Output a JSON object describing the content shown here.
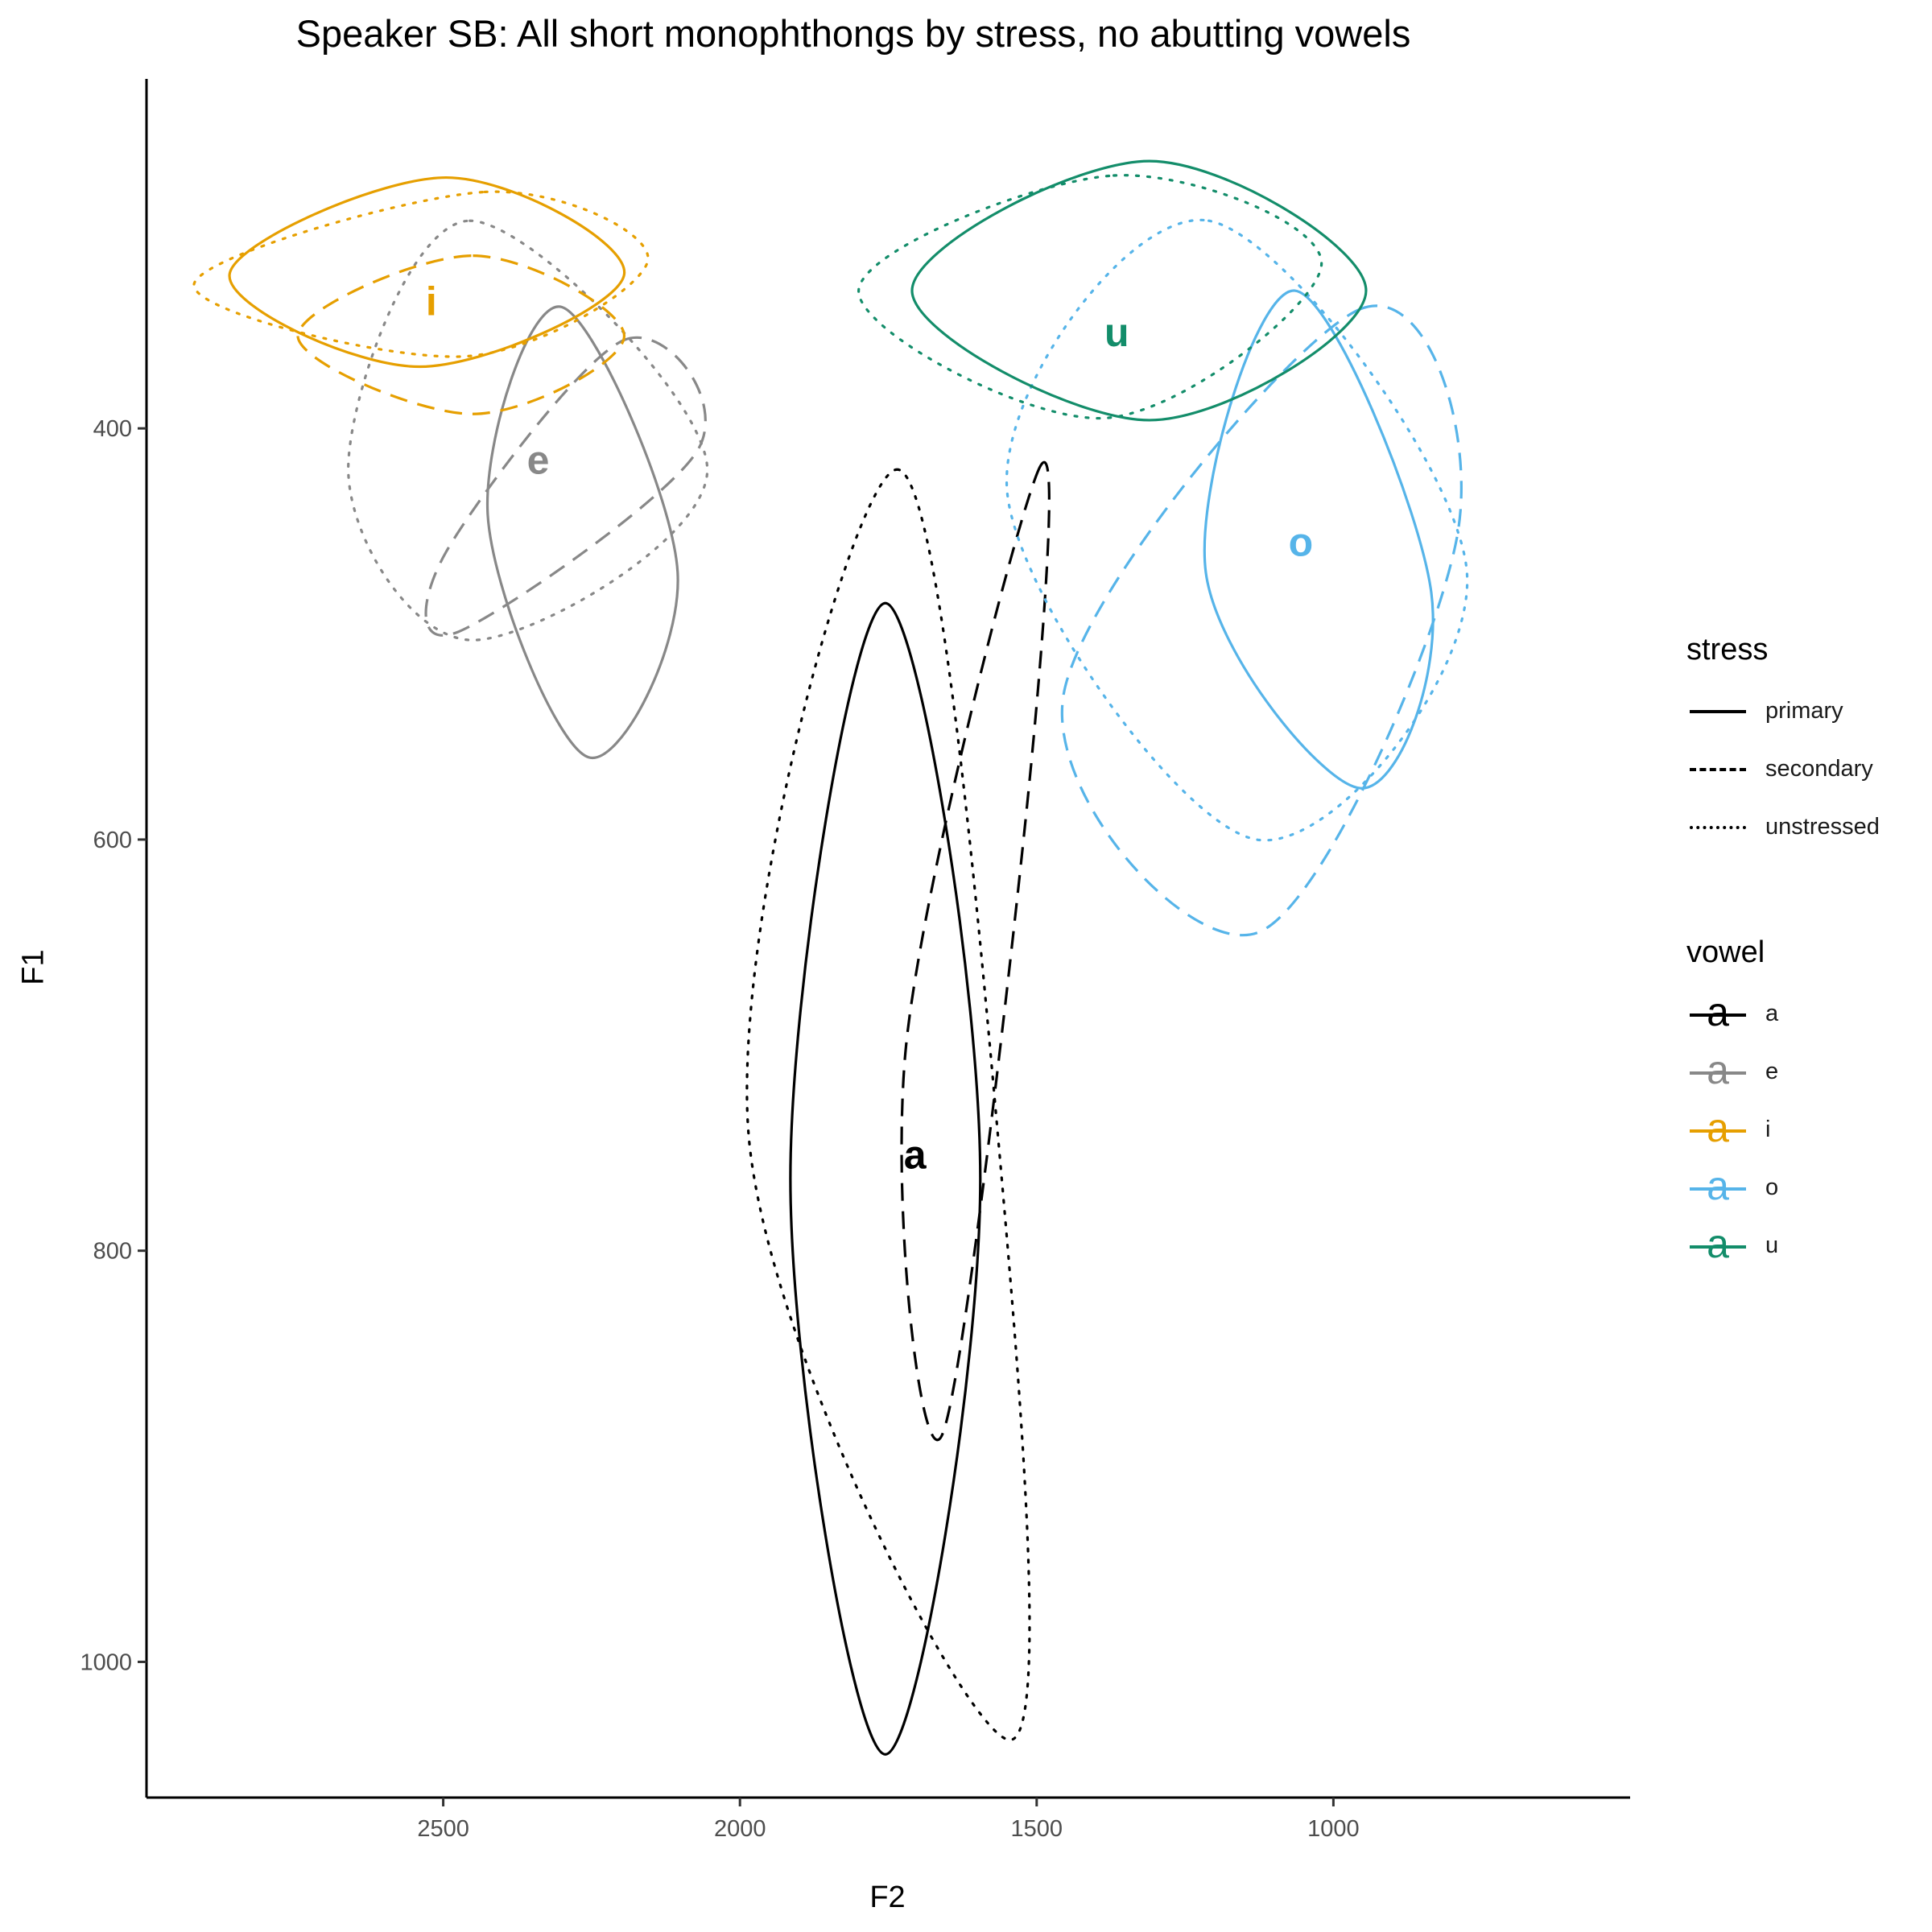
{
  "chart_data": {
    "type": "scatter",
    "title": "Speaker SB: All short monophthongs by stress, no abutting vowels",
    "xlabel": "F2",
    "ylabel": "F1",
    "x_reversed": true,
    "y_reversed": true,
    "xlim": [
      3000,
      500
    ],
    "ylim": [
      1066,
      230
    ],
    "x_ticks": [
      2500,
      2000,
      1500,
      1000
    ],
    "y_ticks": [
      400,
      600,
      800,
      1000
    ],
    "grid": false,
    "legend_placement": "right",
    "legends": {
      "stress": {
        "title": "stress",
        "items": [
          {
            "label": "primary",
            "dash": "solid"
          },
          {
            "label": "secondary",
            "dash": "dashed"
          },
          {
            "label": "unstressed",
            "dash": "dotted"
          }
        ]
      },
      "vowel": {
        "title": "vowel",
        "items": [
          {
            "label": "a",
            "color": "#000000"
          },
          {
            "label": "e",
            "color": "#888888"
          },
          {
            "label": "i",
            "color": "#E69F00"
          },
          {
            "label": "o",
            "color": "#56B4E9"
          },
          {
            "label": "u",
            "color": "#138D6A"
          }
        ]
      },
      "key_glyph": "a"
    },
    "labels": [
      {
        "vowel": "a",
        "text": "a",
        "f2": 1705,
        "f1": 760,
        "color": "#000000"
      },
      {
        "vowel": "e",
        "text": "e",
        "f2": 2340,
        "f1": 422,
        "color": "#888888"
      },
      {
        "vowel": "i",
        "text": "i",
        "f2": 2520,
        "f1": 345,
        "color": "#E69F00"
      },
      {
        "vowel": "o",
        "text": "o",
        "f2": 1055,
        "f1": 462,
        "color": "#56B4E9"
      },
      {
        "vowel": "u",
        "text": "u",
        "f2": 1365,
        "f1": 360,
        "color": "#138D6A"
      }
    ],
    "series": [
      {
        "vowel": "a",
        "stress": "primary",
        "color": "#000000",
        "dash": "solid",
        "points": [
          [
            1755,
            485
          ],
          [
            1595,
            765
          ],
          [
            1755,
            1045
          ],
          [
            1915,
            765
          ]
        ]
      },
      {
        "vowel": "a",
        "stress": "secondary",
        "color": "#000000",
        "dash": "dashed",
        "points": [
          [
            1495,
            419
          ],
          [
            1515,
            580
          ],
          [
            1660,
            890
          ],
          [
            1720,
            700
          ]
        ]
      },
      {
        "vowel": "a",
        "stress": "unstressed",
        "color": "#000000",
        "dash": "dotted",
        "points": [
          [
            1735,
            420
          ],
          [
            1565,
            745
          ],
          [
            1545,
            1038
          ],
          [
            1985,
            745
          ]
        ]
      },
      {
        "vowel": "e",
        "stress": "primary",
        "color": "#888888",
        "dash": "solid",
        "points": [
          [
            2300,
            341
          ],
          [
            2105,
            470
          ],
          [
            2255,
            560
          ],
          [
            2425,
            442
          ]
        ]
      },
      {
        "vowel": "e",
        "stress": "secondary",
        "color": "#888888",
        "dash": "dashed",
        "points": [
          [
            2195,
            357
          ],
          [
            2070,
            410
          ],
          [
            2475,
            499
          ],
          [
            2495,
            460
          ]
        ]
      },
      {
        "vowel": "e",
        "stress": "unstressed",
        "color": "#888888",
        "dash": "dotted",
        "points": [
          [
            2455,
            299
          ],
          [
            2055,
            420
          ],
          [
            2450,
            503
          ],
          [
            2660,
            420
          ]
        ]
      },
      {
        "vowel": "i",
        "stress": "primary",
        "color": "#E69F00",
        "dash": "solid",
        "points": [
          [
            2495,
            278
          ],
          [
            2195,
            325
          ],
          [
            2540,
            370
          ],
          [
            2860,
            325
          ]
        ]
      },
      {
        "vowel": "i",
        "stress": "secondary",
        "color": "#E69F00",
        "dash": "dashed",
        "points": [
          [
            2450,
            316
          ],
          [
            2195,
            355
          ],
          [
            2450,
            393
          ],
          [
            2745,
            355
          ]
        ]
      },
      {
        "vowel": "i",
        "stress": "unstressed",
        "color": "#E69F00",
        "dash": "dotted",
        "points": [
          [
            2430,
            285
          ],
          [
            2155,
            318
          ],
          [
            2465,
            365
          ],
          [
            2920,
            330
          ]
        ]
      },
      {
        "vowel": "o",
        "stress": "primary",
        "color": "#56B4E9",
        "dash": "solid",
        "points": [
          [
            1065,
            333
          ],
          [
            835,
            480
          ],
          [
            955,
            575
          ],
          [
            1215,
            470
          ]
        ]
      },
      {
        "vowel": "o",
        "stress": "secondary",
        "color": "#56B4E9",
        "dash": "dashed",
        "points": [
          [
            955,
            342
          ],
          [
            790,
            450
          ],
          [
            1125,
            645
          ],
          [
            1455,
            530
          ]
        ]
      },
      {
        "vowel": "o",
        "stress": "unstressed",
        "color": "#56B4E9",
        "dash": "dotted",
        "points": [
          [
            1210,
            299
          ],
          [
            775,
            470
          ],
          [
            1130,
            600
          ],
          [
            1550,
            430
          ]
        ]
      },
      {
        "vowel": "u",
        "stress": "primary",
        "color": "#138D6A",
        "dash": "solid",
        "points": [
          [
            1310,
            270
          ],
          [
            945,
            333
          ],
          [
            1310,
            396
          ],
          [
            1710,
            333
          ]
        ]
      },
      {
        "vowel": "u",
        "stress": "secondary",
        "color": "#138D6A",
        "dash": "dashed",
        "points": []
      },
      {
        "vowel": "u",
        "stress": "unstressed",
        "color": "#138D6A",
        "dash": "dotted",
        "points": [
          [
            1370,
            277
          ],
          [
            1020,
            320
          ],
          [
            1385,
            395
          ],
          [
            1800,
            333
          ]
        ]
      }
    ]
  }
}
